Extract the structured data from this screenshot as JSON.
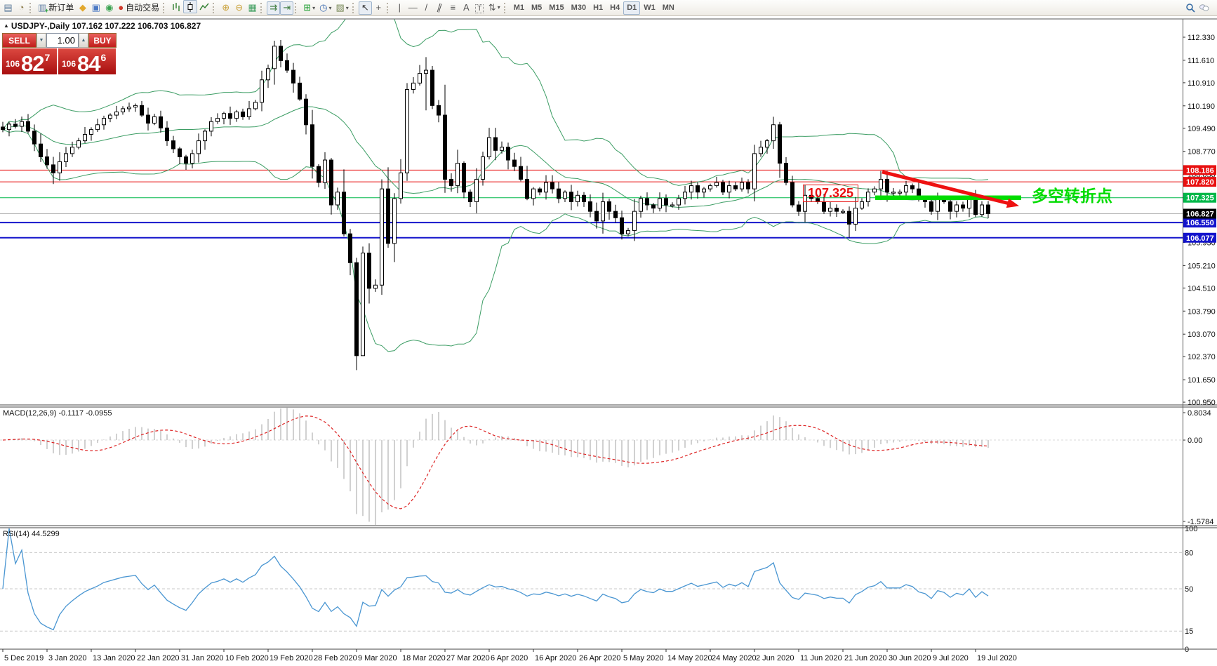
{
  "toolbar": {
    "groups": [
      {
        "items": [
          {
            "name": "terminal-window-icon",
            "glyph": "▤",
            "color": "#5a7a9a"
          },
          {
            "name": "strategy-tester-icon",
            "glyph": "◔",
            "color": "#8a7a4a"
          }
        ]
      },
      {
        "items": [
          {
            "name": "new-order-button",
            "glyph": "▥",
            "color": "#6a86a8",
            "label": "新订单",
            "plus": true
          },
          {
            "name": "indicator-brush-icon",
            "glyph": "◆",
            "color": "#e2a82d"
          },
          {
            "name": "market-watch-icon",
            "glyph": "▣",
            "color": "#4a78c4"
          },
          {
            "name": "signals-icon",
            "glyph": "◉",
            "color": "#38a24f"
          },
          {
            "name": "auto-trading-button",
            "glyph": "●",
            "color": "#cf3a2c",
            "label": "自动交易"
          }
        ]
      },
      {
        "items": [
          {
            "name": "bar-chart-type-button",
            "svg": "bars"
          },
          {
            "name": "candlestick-type-button",
            "svg": "candle",
            "pressed": true
          },
          {
            "name": "line-chart-type-button",
            "svg": "line"
          }
        ]
      },
      {
        "items": [
          {
            "name": "zoom-in-button",
            "glyph": "⊕",
            "color": "#caa23a"
          },
          {
            "name": "zoom-out-button",
            "glyph": "⊖",
            "color": "#caa23a"
          },
          {
            "name": "tile-windows-button",
            "glyph": "▦",
            "color": "#3f9e5f"
          }
        ]
      },
      {
        "items": [
          {
            "name": "auto-scroll-button",
            "glyph": "⇉",
            "color": "#3a7a3a",
            "pressed": true
          },
          {
            "name": "chart-shift-button",
            "glyph": "⇥",
            "color": "#3a7a3a",
            "pressed": true
          }
        ]
      },
      {
        "items": [
          {
            "name": "indicators-button",
            "glyph": "⊞",
            "color": "#1d9e2f",
            "dropdown": true
          },
          {
            "name": "periods-button",
            "glyph": "◷",
            "color": "#3a6ab0",
            "dropdown": true
          },
          {
            "name": "templates-button",
            "glyph": "▨",
            "color": "#7a8a5a",
            "dropdown": true
          }
        ]
      },
      {
        "items": [
          {
            "name": "cursor-button",
            "glyph": "↖",
            "color": "#333",
            "pressed": true
          },
          {
            "name": "crosshair-button",
            "glyph": "+",
            "color": "#555"
          }
        ]
      },
      {
        "items": [
          {
            "name": "vertical-line-button",
            "glyph": "|",
            "color": "#555"
          },
          {
            "name": "horizontal-line-button",
            "glyph": "—",
            "color": "#555"
          },
          {
            "name": "trendline-button",
            "glyph": "/",
            "color": "#555"
          },
          {
            "name": "channel-button",
            "glyph": "∥",
            "color": "#555",
            "slant": true
          },
          {
            "name": "fibonacci-button",
            "glyph": "≡",
            "color": "#555"
          },
          {
            "name": "text-button",
            "glyph": "A",
            "color": "#555"
          },
          {
            "name": "text-label-button",
            "glyph": "T",
            "color": "#555",
            "boxed": true
          },
          {
            "name": "arrows-button",
            "glyph": "⇅",
            "color": "#555",
            "dropdown": true
          }
        ]
      },
      {
        "timeframes": true,
        "items": [
          {
            "name": "timeframe-m1",
            "label": "M1"
          },
          {
            "name": "timeframe-m5",
            "label": "M5"
          },
          {
            "name": "timeframe-m15",
            "label": "M15"
          },
          {
            "name": "timeframe-m30",
            "label": "M30"
          },
          {
            "name": "timeframe-h1",
            "label": "H1"
          },
          {
            "name": "timeframe-h4",
            "label": "H4"
          },
          {
            "name": "timeframe-d1",
            "label": "D1",
            "pressed": true
          },
          {
            "name": "timeframe-w1",
            "label": "W1"
          },
          {
            "name": "timeframe-mn",
            "label": "MN"
          }
        ]
      }
    ],
    "right_items": [
      {
        "name": "search-icon",
        "svg": "magnifier"
      },
      {
        "name": "chat-icon",
        "svg": "bubbles"
      }
    ]
  },
  "chart": {
    "header": "USDJPY-,Daily  107.162 107.222 106.703 106.827"
  },
  "trade_panel": {
    "sell_label": "SELL",
    "buy_label": "BUY",
    "volume": "1.00",
    "sell_prefix": "106",
    "sell_big": "82",
    "sell_sup": "7",
    "buy_prefix": "106",
    "buy_big": "84",
    "buy_sup": "6"
  },
  "chart_data": {
    "type": "candlestick",
    "symbol": "USDJPY-",
    "timeframe": "Daily",
    "ohlc_current": {
      "open": 107.162,
      "high": 107.222,
      "low": 106.703,
      "close": 106.827
    },
    "ylim": [
      100.86,
      112.9
    ],
    "y_ticks": [
      112.33,
      111.61,
      110.91,
      110.19,
      109.49,
      108.77,
      108.05,
      107.33,
      106.63,
      105.93,
      105.21,
      104.51,
      103.79,
      103.07,
      102.37,
      101.65,
      100.95
    ],
    "x_labels": [
      "5 Dec 2019",
      "3 Jan 2020",
      "13 Jan 2020",
      "22 Jan 2020",
      "31 Jan 2020",
      "10 Feb 2020",
      "19 Feb 2020",
      "28 Feb 2020",
      "9 Mar 2020",
      "18 Mar 2020",
      "27 Mar 2020",
      "6 Apr 2020",
      "16 Apr 2020",
      "26 Apr 2020",
      "5 May 2020",
      "14 May 2020",
      "24 May 2020",
      "2 Jun 2020",
      "11 Jun 2020",
      "21 Jun 2020",
      "30 Jun 2020",
      "9 Jul 2020",
      "19 Jul 2020"
    ],
    "closes": [
      109.45,
      109.62,
      109.55,
      109.7,
      109.4,
      109.0,
      108.6,
      108.35,
      108.1,
      108.45,
      108.7,
      108.9,
      109.1,
      109.3,
      109.45,
      109.6,
      109.8,
      109.9,
      110.0,
      110.1,
      110.15,
      110.2,
      109.9,
      109.65,
      109.85,
      109.5,
      109.1,
      108.85,
      108.6,
      108.4,
      108.7,
      109.1,
      109.4,
      109.7,
      109.8,
      109.95,
      109.8,
      110.0,
      109.85,
      110.1,
      110.3,
      111.0,
      111.35,
      112.05,
      111.6,
      111.3,
      110.9,
      110.4,
      109.6,
      108.3,
      107.8,
      108.5,
      107.1,
      107.5,
      106.2,
      105.3,
      102.4,
      105.6,
      104.5,
      104.6,
      107.6,
      105.9,
      107.3,
      108.1,
      110.7,
      110.9,
      111.2,
      111.3,
      110.2,
      109.9,
      107.9,
      107.7,
      108.4,
      107.5,
      107.2,
      107.9,
      108.6,
      109.2,
      108.8,
      108.9,
      108.5,
      108.3,
      107.9,
      107.3,
      107.6,
      107.5,
      107.8,
      107.6,
      107.3,
      107.5,
      107.2,
      107.4,
      107.2,
      106.9,
      106.6,
      107.2,
      106.9,
      106.7,
      106.2,
      106.3,
      106.9,
      107.3,
      107.1,
      107.0,
      107.3,
      107.1,
      107.1,
      107.3,
      107.5,
      107.7,
      107.5,
      107.6,
      107.7,
      107.8,
      107.5,
      107.7,
      107.6,
      107.8,
      107.6,
      108.7,
      108.9,
      109.1,
      109.6,
      108.4,
      107.8,
      107.1,
      106.9,
      107.4,
      107.3,
      107.2,
      106.9,
      107.0,
      106.9,
      106.9,
      106.5,
      107.0,
      107.2,
      107.5,
      107.6,
      107.9,
      107.5,
      107.5,
      107.5,
      107.7,
      107.6,
      107.3,
      107.2,
      106.9,
      107.3,
      107.2,
      106.9,
      107.1,
      107.0,
      107.3,
      106.8,
      107.1,
      106.83
    ],
    "wick_overrides": {
      "8": [
        108.6,
        107.75
      ],
      "43": [
        112.22,
        110.85
      ],
      "56": [
        105.45,
        101.95
      ],
      "57": [
        105.8,
        102.9
      ],
      "60": [
        107.9,
        104.3
      ],
      "64": [
        110.9,
        107.85
      ],
      "67": [
        111.71,
        110.05
      ],
      "122": [
        109.85,
        108.85
      ],
      "134": [
        107.05,
        106.08
      ],
      "139": [
        108.16,
        107.25
      ],
      "140": [
        108.16,
        107.2
      ]
    },
    "hlines": [
      {
        "price": 108.186,
        "label": "108.186",
        "color": "#e81010",
        "width": 1
      },
      {
        "price": 107.82,
        "label": "107.820",
        "color": "#e81010",
        "width": 1
      },
      {
        "price": 107.325,
        "label": "107.325",
        "color": "#00b84a",
        "width": 1
      },
      {
        "price": 106.55,
        "label": "106.550",
        "color": "#1414cc",
        "width": 2
      },
      {
        "price": 106.077,
        "label": "106.077",
        "color": "#1414cc",
        "width": 2
      }
    ],
    "current_price": {
      "value": 106.827,
      "label": "106.827",
      "badge_color": "#000000",
      "line_color": "#b4b4b4"
    },
    "bollinger": {
      "period": 20,
      "deviation": 2,
      "color": "#3c9d64"
    },
    "macd": {
      "label": "MACD(12,26,9) -0.1117 -0.0955",
      "fast": 12,
      "slow": 26,
      "signal": 9,
      "values": [
        -0.1117,
        -0.0955
      ],
      "axis_labels": [
        "0.8034",
        "0.00",
        "-1.5784"
      ],
      "hist_color": "#bdbdbd",
      "signal_color": "#dd2222"
    },
    "rsi": {
      "label": "RSI(14) 44.5299",
      "period": 14,
      "value": 44.5299,
      "levels": [
        80,
        50,
        15
      ],
      "axis_labels": [
        "100",
        "80",
        "50",
        "15",
        "0"
      ],
      "line_color": "#4a96d2"
    },
    "annotations": {
      "price_box": "107.325",
      "cn_text": "多空转折点",
      "arrow_color": "#ee1111",
      "bar_color": "#00dc00"
    }
  }
}
